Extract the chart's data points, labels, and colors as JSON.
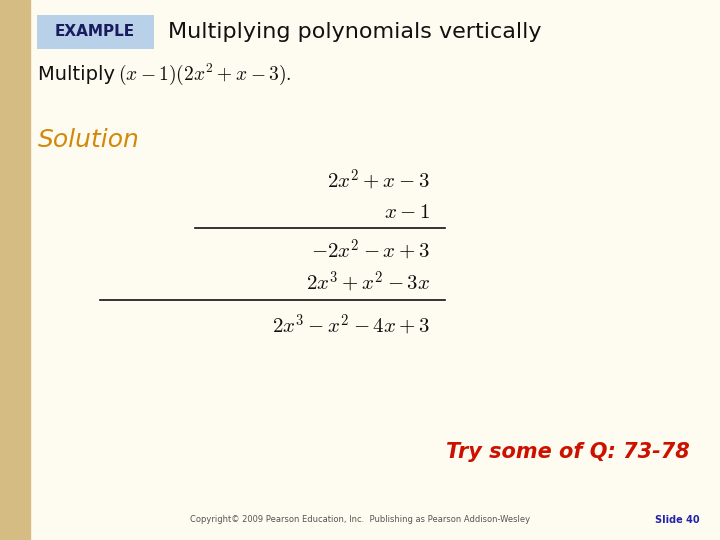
{
  "background_color": "#FEFCF0",
  "left_bar_color": "#D4BC82",
  "example_box_color": "#B8D0E8",
  "example_text": "EXAMPLE",
  "title_text": "Multiplying polynomials vertically",
  "multiply_label": "Multiply",
  "multiply_expr": "$(x-1)(2x^2+x-3).$",
  "solution_label": "Solution",
  "solution_color": "#D4880A",
  "line1": "$2x^2+x-3$",
  "line2": "$x-1$",
  "line3": "$-2x^2-x+3$",
  "line4": "$2x^3+x^2-3x$",
  "line5": "$2x^3-x^2-4x+3$",
  "try_text": "Try some of Q: 73-78",
  "try_color": "#CC1100",
  "copyright_text": "Copyright© 2009 Pearson Education, Inc.  Publishing as Pearson Addison-Wesley",
  "slide_text": "Slide 40",
  "slide_color": "#2222AA",
  "title_fontsize": 16,
  "label_fontsize": 14,
  "math_fontsize": 15,
  "solution_fontsize": 18,
  "try_fontsize": 15,
  "copyright_fontsize": 6,
  "slide_fontsize": 7
}
